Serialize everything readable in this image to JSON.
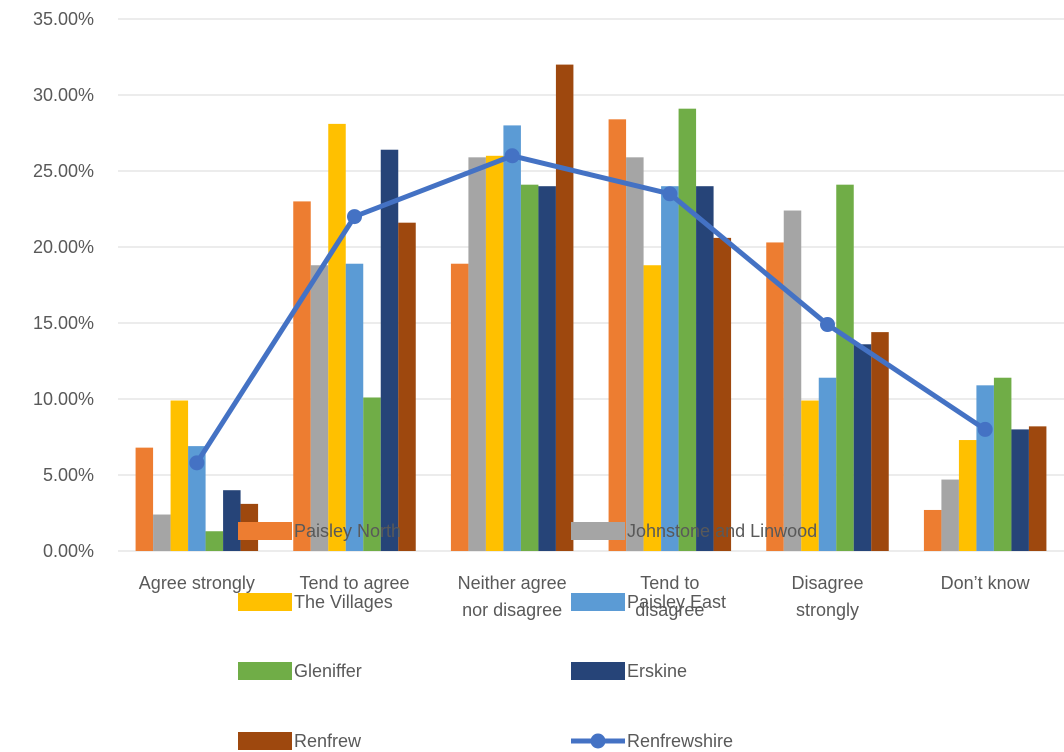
{
  "chart_data": {
    "type": "bar",
    "categories": [
      [
        "Agree strongly"
      ],
      [
        "Tend to agree"
      ],
      [
        "Neither agree",
        "nor disagree"
      ],
      [
        "Tend to",
        "disagree"
      ],
      [
        "Disagree",
        "strongly"
      ],
      [
        "Don’t know"
      ]
    ],
    "ylim": [
      0,
      0.35
    ],
    "yticks": [
      "0.00%",
      "5.00%",
      "10.00%",
      "15.00%",
      "20.00%",
      "25.00%",
      "30.00%",
      "35.00%"
    ],
    "grid": true,
    "legend_position": "bottom",
    "series": [
      {
        "name": "Paisley North",
        "type": "bar",
        "color": "#ED7D31",
        "values": [
          0.068,
          0.23,
          0.189,
          0.284,
          0.203,
          0.027
        ]
      },
      {
        "name": "Johnstone and Linwood",
        "type": "bar",
        "color": "#A5A5A5",
        "values": [
          0.024,
          0.188,
          0.259,
          0.259,
          0.224,
          0.047
        ]
      },
      {
        "name": "The Villages",
        "type": "bar",
        "color": "#FFC000",
        "values": [
          0.099,
          0.281,
          0.26,
          0.188,
          0.099,
          0.073
        ]
      },
      {
        "name": "Paisley East",
        "type": "bar",
        "color": "#5B9BD5",
        "values": [
          0.069,
          0.189,
          0.28,
          0.24,
          0.114,
          0.109
        ]
      },
      {
        "name": "Gleniffer",
        "type": "bar",
        "color": "#70AD47",
        "values": [
          0.013,
          0.101,
          0.241,
          0.291,
          0.241,
          0.114
        ]
      },
      {
        "name": "Erskine",
        "type": "bar",
        "color": "#264478",
        "values": [
          0.04,
          0.264,
          0.24,
          0.24,
          0.136,
          0.08
        ]
      },
      {
        "name": "Renfrew",
        "type": "bar",
        "color": "#9E480E",
        "values": [
          0.031,
          0.216,
          0.32,
          0.206,
          0.144,
          0.082
        ]
      },
      {
        "name": "Renfrewshire",
        "type": "line",
        "color": "#4472C4",
        "values": [
          0.058,
          0.22,
          0.26,
          0.235,
          0.149,
          0.08
        ]
      }
    ]
  }
}
